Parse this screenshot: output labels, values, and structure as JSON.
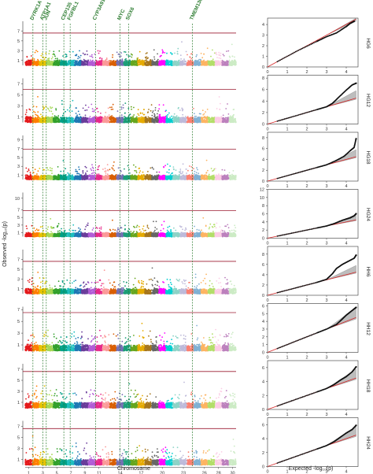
{
  "figure": {
    "y_axis_label": "Observed -log₁₀(p)",
    "x_axis_label": "Chromosome",
    "qq_x_axis_label": "Expected -log₁₀(p)"
  },
  "chart_data": {
    "type": "scatter",
    "manhattan": {
      "chromosomes": [
        "1",
        "2",
        "3",
        "4",
        "5",
        "6",
        "7",
        "8",
        "9",
        "10",
        "11",
        "12",
        "13",
        "14",
        "15",
        "16",
        "17",
        "18",
        "19",
        "20",
        "21",
        "22",
        "23",
        "24",
        "25",
        "26",
        "27",
        "28",
        "29",
        "30"
      ],
      "x_tick_labels": [
        "1",
        "3",
        "5",
        "7",
        "9",
        "11",
        "14",
        "17",
        "20",
        "23",
        "26",
        "28",
        "30"
      ],
      "x_tick_chromosomes": [
        1,
        3,
        5,
        7,
        9,
        11,
        14,
        17,
        20,
        23,
        26,
        28,
        30
      ],
      "chromosome_colors": [
        "#e41a1c",
        "#ff7f00",
        "#e6c200",
        "#a6d854",
        "#33a02c",
        "#00a087",
        "#1fbfbf",
        "#1f78b4",
        "#6a3d9a",
        "#b15cd6",
        "#e7298a",
        "#fb9a99",
        "#d95f02",
        "#7570b3",
        "#1b9e77",
        "#66a61e",
        "#e6ab02",
        "#a6761d",
        "#666666",
        "#ff00ff",
        "#00ced1",
        "#8dd3c7",
        "#bebada",
        "#fb8072",
        "#80b1d3",
        "#fdb462",
        "#b3de69",
        "#fccde5",
        "#bc80bd",
        "#ccebc5"
      ],
      "genes": [
        {
          "name": "DYRK1A",
          "chromosome": 1.6
        },
        {
          "name": "ATP1A1",
          "chromosome": 3.0
        },
        {
          "name": "JUN",
          "chromosome": 3.5
        },
        {
          "name": "CEP135",
          "chromosome": 6.0
        },
        {
          "name": "FGFBL1",
          "chromosome": 6.9
        },
        {
          "name": "CYP3A91",
          "chromosome": 10.5
        },
        {
          "name": "MYC",
          "chromosome": 14.0
        },
        {
          "name": "SOX6",
          "chromosome": 15.2
        },
        {
          "name": "TMEM130",
          "chromosome": 24.3
        }
      ],
      "gene_line_color": "#2e7d32",
      "threshold_color": "#9b1b30"
    },
    "panels": [
      {
        "name": "HG6",
        "y_ticks": [
          1,
          3,
          5,
          7
        ],
        "ylim": [
          0,
          9
        ],
        "threshold": 6.6,
        "qq": {
          "y_ticks": [
            0,
            1,
            2,
            3,
            4
          ],
          "ylim": [
            0,
            4.6
          ],
          "xlim": [
            0,
            4.6
          ],
          "x_ticks": [
            0,
            1,
            2,
            3,
            4
          ],
          "points": [
            [
              0.5,
              0.5
            ],
            [
              1.5,
              1.5
            ],
            [
              2.5,
              2.4
            ],
            [
              3.0,
              2.85
            ],
            [
              3.5,
              3.2
            ],
            [
              4.0,
              3.8
            ],
            [
              4.2,
              4.1
            ],
            [
              4.4,
              4.3
            ]
          ]
        }
      },
      {
        "name": "HG12",
        "y_ticks": [
          1,
          3,
          5,
          7
        ],
        "ylim": [
          0,
          8
        ],
        "threshold": 6.0,
        "qq": {
          "y_ticks": [
            0,
            2,
            4,
            6,
            8
          ],
          "ylim": [
            0,
            8.5
          ],
          "xlim": [
            0,
            4.6
          ],
          "x_ticks": [
            0,
            1,
            2,
            3,
            4
          ],
          "points": [
            [
              0.5,
              0.5
            ],
            [
              1.5,
              1.5
            ],
            [
              2.5,
              2.5
            ],
            [
              3.0,
              3.0
            ],
            [
              3.3,
              3.6
            ],
            [
              3.6,
              4.6
            ],
            [
              4.0,
              5.9
            ],
            [
              4.3,
              6.8
            ],
            [
              4.5,
              7.1
            ]
          ]
        }
      },
      {
        "name": "HG18",
        "y_ticks": [
          1,
          3,
          5,
          7,
          9
        ],
        "ylim": [
          0,
          10
        ],
        "threshold": 6.9,
        "qq": {
          "y_ticks": [
            0,
            2,
            4,
            6,
            8
          ],
          "ylim": [
            0,
            9
          ],
          "xlim": [
            0,
            4.6
          ],
          "x_ticks": [
            0,
            1,
            2,
            3,
            4
          ],
          "points": [
            [
              0.5,
              0.5
            ],
            [
              1.5,
              1.5
            ],
            [
              2.5,
              2.5
            ],
            [
              3.0,
              3.0
            ],
            [
              3.5,
              3.8
            ],
            [
              3.9,
              4.6
            ],
            [
              4.2,
              5.6
            ],
            [
              4.4,
              6.2
            ],
            [
              4.5,
              7.8
            ]
          ]
        }
      },
      {
        "name": "HG24",
        "y_ticks": [
          1,
          3,
          5,
          7,
          10
        ],
        "ylim": [
          0,
          11.5
        ],
        "threshold": 6.8,
        "qq": {
          "y_ticks": [
            0,
            2,
            4,
            6,
            8,
            10,
            12
          ],
          "ylim": [
            0,
            12
          ],
          "xlim": [
            0,
            4.6
          ],
          "x_ticks": [
            0,
            1,
            2,
            3,
            4
          ],
          "points": [
            [
              0.5,
              0.5
            ],
            [
              1.5,
              1.5
            ],
            [
              2.5,
              2.5
            ],
            [
              3.0,
              3.0
            ],
            [
              3.4,
              3.6
            ],
            [
              3.8,
              4.4
            ],
            [
              4.2,
              5.0
            ],
            [
              4.4,
              5.5
            ],
            [
              4.5,
              6.0
            ]
          ]
        }
      },
      {
        "name": "HH6",
        "y_ticks": [
          1,
          3,
          5,
          7
        ],
        "ylim": [
          0,
          9
        ],
        "threshold": 6.6,
        "qq": {
          "y_ticks": [
            0,
            2,
            4,
            6,
            8
          ],
          "ylim": [
            0,
            9.5
          ],
          "xlim": [
            0,
            4.6
          ],
          "x_ticks": [
            0,
            1,
            2,
            3,
            4
          ],
          "points": [
            [
              0.5,
              0.5
            ],
            [
              1.5,
              1.5
            ],
            [
              2.5,
              2.5
            ],
            [
              3.0,
              3.1
            ],
            [
              3.3,
              4.2
            ],
            [
              3.5,
              5.2
            ],
            [
              3.8,
              6.0
            ],
            [
              4.1,
              6.6
            ],
            [
              4.4,
              7.2
            ],
            [
              4.5,
              7.8
            ]
          ]
        }
      },
      {
        "name": "HH12",
        "y_ticks": [
          1,
          3,
          5,
          7
        ],
        "ylim": [
          0,
          7.5
        ],
        "threshold": 6.5,
        "qq": {
          "y_ticks": [
            0,
            1,
            2,
            3,
            4,
            5,
            6
          ],
          "ylim": [
            0,
            6.3
          ],
          "xlim": [
            0,
            4.6
          ],
          "x_ticks": [
            0,
            1,
            2,
            3,
            4
          ],
          "points": [
            [
              0.5,
              0.5
            ],
            [
              1.5,
              1.5
            ],
            [
              2.5,
              2.5
            ],
            [
              3.0,
              3.0
            ],
            [
              3.5,
              3.6
            ],
            [
              3.8,
              4.3
            ],
            [
              4.0,
              4.8
            ],
            [
              4.2,
              5.2
            ],
            [
              4.4,
              5.6
            ],
            [
              4.5,
              5.8
            ]
          ]
        }
      },
      {
        "name": "HH18",
        "y_ticks": [
          1,
          3,
          5,
          7
        ],
        "ylim": [
          0,
          8
        ],
        "threshold": 6.6,
        "qq": {
          "y_ticks": [
            0,
            2,
            4,
            6
          ],
          "ylim": [
            0,
            7
          ],
          "xlim": [
            0,
            4.6
          ],
          "x_ticks": [
            0,
            1,
            2,
            3,
            4
          ],
          "points": [
            [
              0.5,
              0.5
            ],
            [
              1.5,
              1.5
            ],
            [
              2.5,
              2.5
            ],
            [
              3.0,
              3.0
            ],
            [
              3.4,
              3.6
            ],
            [
              3.7,
              4.2
            ],
            [
              4.0,
              4.7
            ],
            [
              4.3,
              5.4
            ],
            [
              4.5,
              6.1
            ]
          ]
        }
      },
      {
        "name": "HH24",
        "y_ticks": [
          1,
          3,
          5,
          7
        ],
        "ylim": [
          0,
          8
        ],
        "threshold": 6.6,
        "qq": {
          "y_ticks": [
            0,
            2,
            4,
            6
          ],
          "ylim": [
            0,
            7
          ],
          "xlim": [
            0,
            4.6
          ],
          "x_ticks": [
            0,
            1,
            2,
            3,
            4
          ],
          "points": [
            [
              0.5,
              0.5
            ],
            [
              1.5,
              1.5
            ],
            [
              2.5,
              2.5
            ],
            [
              3.0,
              3.0
            ],
            [
              3.4,
              3.6
            ],
            [
              3.7,
              4.2
            ],
            [
              4.0,
              4.8
            ],
            [
              4.3,
              5.3
            ],
            [
              4.5,
              5.9
            ]
          ]
        }
      }
    ],
    "qq_x_tick_labels": [
      "0",
      "1",
      "2",
      "3",
      "4"
    ]
  }
}
